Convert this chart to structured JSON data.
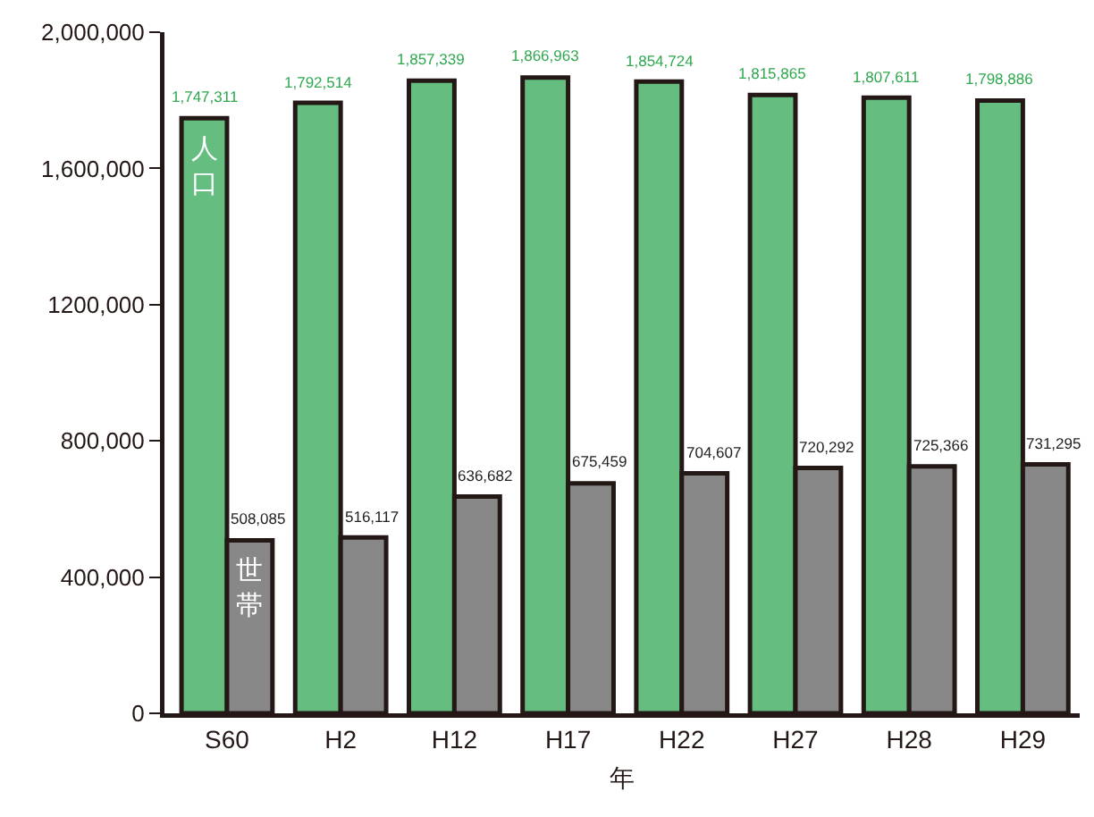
{
  "chart_data": {
    "type": "bar",
    "xlabel": "年",
    "categories": [
      "S60",
      "H2",
      "H12",
      "H17",
      "H22",
      "H27",
      "H28",
      "H29"
    ],
    "series": [
      {
        "name": "人口",
        "color": "#66bd80",
        "values": [
          1747311,
          1792514,
          1857339,
          1866963,
          1854724,
          1815865,
          1807611,
          1798886
        ],
        "value_labels": [
          "1,747,311",
          "1,792,514",
          "1,857,339",
          "1,866,963",
          "1,854,724",
          "1,815,865",
          "1,807,611",
          "1,798,886"
        ]
      },
      {
        "name": "世帯",
        "color": "#888888",
        "values": [
          508085,
          516117,
          636682,
          675459,
          704607,
          720292,
          725366,
          731295
        ],
        "value_labels": [
          "508,085",
          "516,117",
          "636,682",
          "675,459",
          "704,607",
          "720,292",
          "725,366",
          "731,295"
        ]
      }
    ],
    "ylim": [
      0,
      2000000
    ],
    "yticks": [
      0,
      {
        "value": 400000,
        "label": "400,000"
      },
      {
        "value": 800000,
        "label": "800,000"
      },
      {
        "value": 1200000,
        "label": "1200,000"
      },
      {
        "value": 1600000,
        "label": "1,600,000"
      },
      {
        "value": 2000000,
        "label": "2,000,000"
      }
    ],
    "grid": false,
    "legend": false
  }
}
